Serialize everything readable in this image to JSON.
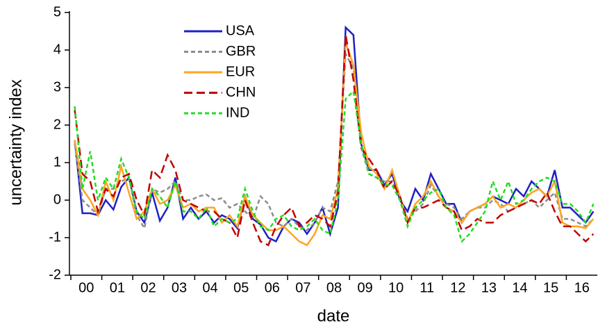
{
  "chart_data": {
    "type": "line",
    "x_label": "date",
    "y_label": "uncertainty index",
    "categories": [
      "00",
      null,
      null,
      null,
      "01",
      null,
      null,
      null,
      "02",
      null,
      null,
      null,
      "03",
      null,
      null,
      null,
      "04",
      null,
      null,
      null,
      "05",
      null,
      null,
      null,
      "06",
      null,
      null,
      null,
      "07",
      null,
      null,
      null,
      "08",
      null,
      null,
      null,
      "09",
      null,
      null,
      null,
      "10",
      null,
      null,
      null,
      "11",
      null,
      null,
      null,
      "12",
      null,
      null,
      null,
      "13",
      null,
      null,
      null,
      "14",
      null,
      null,
      null,
      "15",
      null,
      null,
      null,
      "16",
      null,
      null,
      null
    ],
    "ylim": [
      -2,
      5
    ],
    "yticks": [
      -2,
      -1,
      0,
      1,
      2,
      3,
      4,
      5
    ],
    "legend": "upper-left",
    "series": [
      {
        "name": "USA",
        "color": "#1f1fc4",
        "dash": "solid",
        "values": [
          1.6,
          -0.35,
          -0.35,
          -0.4,
          0.0,
          -0.25,
          0.35,
          0.6,
          -0.3,
          -0.6,
          0.2,
          -0.55,
          -0.2,
          0.6,
          -0.5,
          -0.2,
          -0.5,
          -0.3,
          -0.6,
          -0.4,
          -0.5,
          -0.75,
          0.1,
          -0.5,
          -0.65,
          -1.0,
          -1.1,
          -0.7,
          -0.5,
          -0.6,
          -0.9,
          -0.6,
          -0.2,
          -0.9,
          -0.2,
          4.6,
          4.4,
          1.5,
          0.8,
          0.8,
          0.4,
          0.7,
          0.0,
          -0.3,
          0.3,
          0.0,
          0.7,
          0.3,
          -0.1,
          -0.1,
          -0.6,
          -0.3,
          -0.2,
          -0.1,
          0.1,
          0.0,
          -0.1,
          0.3,
          0.1,
          0.5,
          0.3,
          0.1,
          0.8,
          -0.2,
          -0.2,
          -0.4,
          -0.6,
          -0.3
        ]
      },
      {
        "name": "GBR",
        "color": "#8c8c8c",
        "dash": "short",
        "values": [
          1.5,
          0.0,
          -0.2,
          -0.4,
          0.3,
          0.3,
          0.5,
          0.6,
          -0.4,
          -0.75,
          0.3,
          0.2,
          0.3,
          0.5,
          0.0,
          0.0,
          0.1,
          0.15,
          0.0,
          0.05,
          -0.2,
          -0.1,
          -0.3,
          -0.5,
          0.1,
          -0.1,
          -0.6,
          -0.7,
          -0.5,
          -0.7,
          -0.8,
          -0.6,
          -0.2,
          -0.3,
          0.5,
          3.9,
          3.5,
          1.4,
          0.7,
          0.6,
          0.5,
          0.5,
          0.1,
          -0.5,
          -0.3,
          -0.1,
          0.4,
          0.1,
          -0.1,
          -0.2,
          -0.5,
          -0.3,
          -0.2,
          -0.2,
          0.0,
          -0.1,
          -0.3,
          -0.2,
          -0.1,
          0.0,
          -0.2,
          0.0,
          0.2,
          -0.5,
          -0.5,
          -0.6,
          -0.7,
          -0.5
        ]
      },
      {
        "name": "EUR",
        "color": "#ffa51f",
        "dash": "solid",
        "values": [
          1.6,
          0.3,
          0.0,
          -0.4,
          0.5,
          0.0,
          0.9,
          0.2,
          -0.5,
          -0.3,
          0.3,
          -0.1,
          0.0,
          0.4,
          -0.2,
          -0.1,
          -0.3,
          -0.2,
          -0.2,
          -0.6,
          -0.4,
          -0.7,
          0.1,
          -0.4,
          -0.6,
          -0.8,
          -0.8,
          -0.7,
          -0.9,
          -1.1,
          -1.2,
          -0.9,
          -0.4,
          -0.5,
          0.3,
          4.2,
          3.6,
          1.8,
          0.9,
          0.7,
          0.3,
          0.8,
          0.1,
          -0.6,
          -0.1,
          0.1,
          0.5,
          0.1,
          -0.2,
          -0.3,
          -0.6,
          -0.3,
          -0.2,
          -0.1,
          0.1,
          -0.2,
          -0.1,
          -0.2,
          0.0,
          0.2,
          0.3,
          0.1,
          0.5,
          -0.6,
          -0.7,
          -0.7,
          -0.75,
          -0.5
        ]
      },
      {
        "name": "CHN",
        "color": "#c00000",
        "dash": "long",
        "values": [
          2.4,
          0.7,
          0.5,
          -0.3,
          0.3,
          0.1,
          0.6,
          0.7,
          0.0,
          -0.4,
          0.8,
          0.6,
          1.2,
          0.8,
          0.0,
          -0.1,
          -0.2,
          -0.3,
          -0.3,
          -0.5,
          -0.6,
          -1.0,
          0.0,
          -0.6,
          -1.1,
          -1.2,
          -0.7,
          -0.4,
          -0.2,
          -0.7,
          -0.6,
          -0.4,
          -0.5,
          -0.7,
          0.2,
          4.4,
          3.2,
          1.4,
          1.1,
          0.8,
          0.3,
          0.5,
          0.1,
          -0.6,
          -0.2,
          -0.2,
          -0.1,
          0.0,
          -0.2,
          -0.3,
          -0.8,
          -0.7,
          -0.5,
          -0.6,
          -0.6,
          -0.4,
          -0.3,
          -0.2,
          -0.1,
          0.0,
          -0.1,
          0.2,
          -0.3,
          -0.7,
          -0.7,
          -0.9,
          -1.1,
          -0.9
        ]
      },
      {
        "name": "IND",
        "color": "#22dd22",
        "dash": "short",
        "values": [
          2.5,
          0.3,
          1.3,
          0.0,
          0.6,
          0.3,
          1.1,
          0.6,
          -0.3,
          -0.5,
          0.3,
          0.1,
          -0.2,
          0.5,
          -0.3,
          -0.3,
          -0.5,
          -0.2,
          -0.7,
          -0.5,
          -0.6,
          -0.5,
          0.3,
          -0.3,
          -0.7,
          -0.8,
          -0.5,
          -0.4,
          -0.7,
          -0.8,
          -0.7,
          -0.5,
          -0.8,
          -0.9,
          0.0,
          2.7,
          2.9,
          1.5,
          0.7,
          0.6,
          0.4,
          0.4,
          0.0,
          -0.7,
          -0.2,
          0.0,
          0.2,
          0.3,
          -0.2,
          -0.4,
          -1.1,
          -0.9,
          -0.6,
          -0.3,
          0.5,
          0.0,
          0.5,
          -0.1,
          0.0,
          0.3,
          0.5,
          0.6,
          0.5,
          -0.1,
          -0.1,
          -0.3,
          -0.6,
          -0.1
        ]
      }
    ]
  }
}
